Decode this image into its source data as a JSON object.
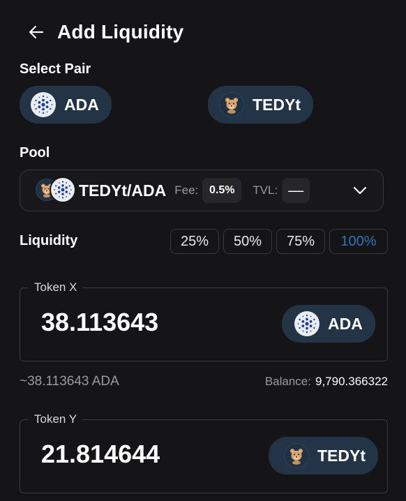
{
  "header": {
    "title": "Add Liquidity"
  },
  "select_pair": {
    "label": "Select Pair",
    "token_a": {
      "symbol": "ADA",
      "icon": "ada-icon"
    },
    "token_b": {
      "symbol": "TEDYt",
      "icon": "tedy-icon"
    }
  },
  "pool": {
    "label": "Pool",
    "pair": "TEDYt/ADA",
    "fee_label": "Fee:",
    "fee_value": "0.5%",
    "tvl_label": "TVL:",
    "tvl_value": "—"
  },
  "liquidity": {
    "label": "Liquidity",
    "presets": [
      "25%",
      "50%",
      "75%",
      "100%"
    ],
    "active_preset": "100%"
  },
  "token_x": {
    "legend": "Token X",
    "amount": "38.113643",
    "symbol": "ADA",
    "estimate": "~38.113643 ADA",
    "balance_label": "Balance:",
    "balance_value": "9,790.366322"
  },
  "token_y": {
    "legend": "Token Y",
    "amount": "21.814644",
    "symbol": "TEDYt"
  },
  "colors": {
    "background": "#151517",
    "pill": "#233446",
    "border": "#3a3a40",
    "accent": "#2f73c0"
  }
}
